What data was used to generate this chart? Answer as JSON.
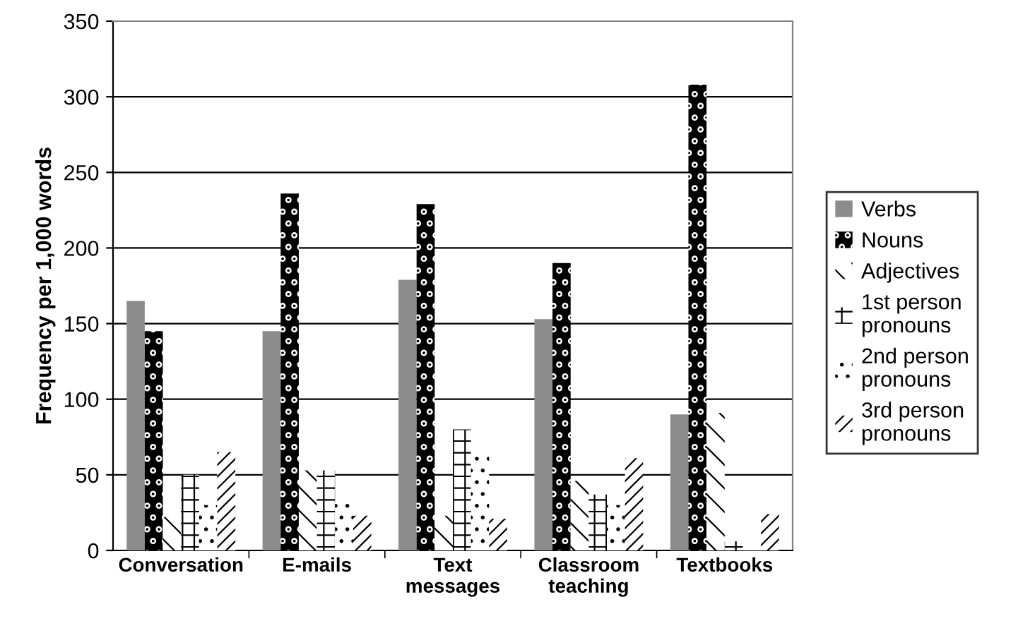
{
  "chart_data": {
    "type": "bar",
    "ylabel": "Frequency per 1,000 words",
    "categories": [
      "Conversation",
      "E-mails",
      "Text\nmessages",
      "Classroom\nteaching",
      "Textbooks"
    ],
    "series": [
      {
        "name": "Verbs",
        "color": "#8c8c8c",
        "values": [
          165,
          145,
          179,
          153,
          90
        ]
      },
      {
        "name": "Nouns",
        "color": "#000000",
        "values": [
          145,
          236,
          229,
          190,
          308
        ]
      },
      {
        "name": "Adjectives",
        "color": "#ffffff",
        "values": [
          22,
          53,
          23,
          46,
          91
        ]
      },
      {
        "name": "1st person\npronouns",
        "color": "#ffffff",
        "values": [
          50,
          53,
          80,
          37,
          6
        ]
      },
      {
        "name": "2nd person\npronouns",
        "color": "#ffffff",
        "values": [
          30,
          32,
          62,
          30,
          2
        ]
      },
      {
        "name": "3rd person\npronouns",
        "color": "#ffffff",
        "values": [
          65,
          23,
          21,
          61,
          24
        ]
      }
    ],
    "ylim": [
      0,
      350
    ],
    "yticks": [
      0,
      50,
      100,
      150,
      200,
      250,
      300,
      350
    ],
    "grid": "y",
    "legend": "right"
  }
}
